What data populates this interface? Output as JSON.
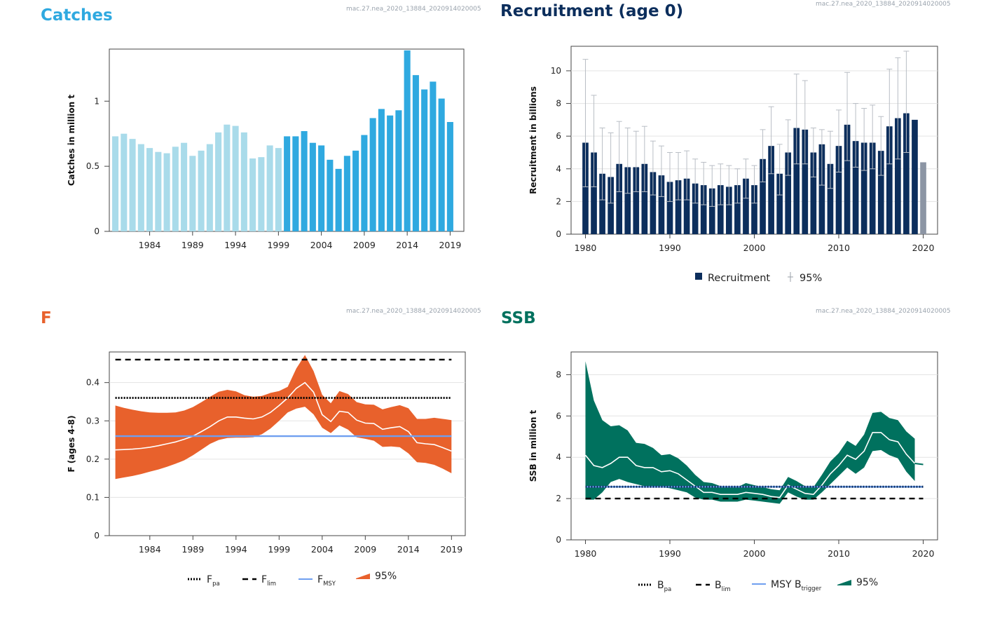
{
  "panels": {
    "catches": {
      "title": "Catches",
      "id": "mac.27.nea_2020_13884_2020914020005",
      "color": "#2fa9e0"
    },
    "recruitment": {
      "title": "Recruitment (age 0)",
      "id": "mac.27.nea_2020_13884_2020914020005",
      "color": "#0c2e5c"
    },
    "f": {
      "title": "F",
      "id": "mac.27.nea_2020_13884_2020914020005",
      "color": "#e8612c"
    },
    "ssb": {
      "title": "SSB",
      "id": "mac.27.nea_2020_13884_2020914020005",
      "color": "#00715e"
    }
  },
  "chart_data": [
    {
      "key": "catches",
      "type": "bar",
      "ylabel": "Catches in million t",
      "ylim": [
        0,
        1.4
      ],
      "yticks": [
        0,
        0.5,
        1
      ],
      "ytick_labels": [
        "0",
        "0.5",
        "1"
      ],
      "xticks": [
        1984,
        1989,
        1994,
        1999,
        2004,
        2009,
        2014,
        2019
      ],
      "xrange": [
        1979.3,
        2020.6
      ],
      "years": [
        1980,
        1981,
        1982,
        1983,
        1984,
        1985,
        1986,
        1987,
        1988,
        1989,
        1990,
        1991,
        1992,
        1993,
        1994,
        1995,
        1996,
        1997,
        1998,
        1999,
        2000,
        2001,
        2002,
        2003,
        2004,
        2005,
        2006,
        2007,
        2008,
        2009,
        2010,
        2011,
        2012,
        2013,
        2014,
        2015,
        2016,
        2017,
        2018,
        2019
      ],
      "values": [
        0.73,
        0.75,
        0.71,
        0.67,
        0.64,
        0.61,
        0.6,
        0.65,
        0.68,
        0.58,
        0.62,
        0.67,
        0.76,
        0.82,
        0.81,
        0.76,
        0.56,
        0.57,
        0.66,
        0.64,
        0.73,
        0.73,
        0.77,
        0.68,
        0.66,
        0.55,
        0.48,
        0.58,
        0.62,
        0.74,
        0.87,
        0.94,
        0.89,
        0.93,
        1.39,
        1.2,
        1.09,
        1.15,
        1.02,
        0.84
      ],
      "series_colors": {
        "historical": "#a9dbea",
        "recent": "#2fa9e0"
      },
      "recent_from": 2000
    },
    {
      "key": "recruitment",
      "type": "bar",
      "ylabel": "Recruitment in billions",
      "ylim": [
        0,
        11.5
      ],
      "yticks": [
        0,
        2,
        4,
        6,
        8,
        10
      ],
      "ytick_labels": [
        "0",
        "2",
        "4",
        "6",
        "8",
        "10"
      ],
      "xticks": [
        1980,
        1990,
        2000,
        2010,
        2020
      ],
      "xrange": [
        1978.3,
        2021.7
      ],
      "years": [
        1980,
        1981,
        1982,
        1983,
        1984,
        1985,
        1986,
        1987,
        1988,
        1989,
        1990,
        1991,
        1992,
        1993,
        1994,
        1995,
        1996,
        1997,
        1998,
        1999,
        2000,
        2001,
        2002,
        2003,
        2004,
        2005,
        2006,
        2007,
        2008,
        2009,
        2010,
        2011,
        2012,
        2013,
        2014,
        2015,
        2016,
        2017,
        2018,
        2019,
        2020
      ],
      "values": [
        5.6,
        5.0,
        3.7,
        3.5,
        4.3,
        4.1,
        4.1,
        4.3,
        3.8,
        3.6,
        3.2,
        3.3,
        3.4,
        3.1,
        3.0,
        2.8,
        3.0,
        2.9,
        3.0,
        3.4,
        3.0,
        4.6,
        5.4,
        3.7,
        5.0,
        6.5,
        6.4,
        5.0,
        5.5,
        4.3,
        5.4,
        6.7,
        5.7,
        5.6,
        5.6,
        5.1,
        6.6,
        7.1,
        7.4,
        7.0,
        4.4
      ],
      "ci_low": [
        2.9,
        2.9,
        2.1,
        1.9,
        2.6,
        2.5,
        2.6,
        2.6,
        2.4,
        2.3,
        2.0,
        2.1,
        2.1,
        1.9,
        1.8,
        1.7,
        1.8,
        1.8,
        1.9,
        2.2,
        1.9,
        3.2,
        3.7,
        2.4,
        3.6,
        4.3,
        4.3,
        3.5,
        3.0,
        2.8,
        3.8,
        4.5,
        4.1,
        3.9,
        4.0,
        3.6,
        4.3,
        4.6,
        5.0,
        null,
        null
      ],
      "ci_high": [
        10.7,
        8.5,
        6.5,
        6.2,
        6.9,
        6.5,
        6.3,
        6.6,
        5.7,
        5.4,
        5.0,
        5.0,
        5.1,
        4.6,
        4.4,
        4.2,
        4.3,
        4.2,
        4.0,
        4.6,
        4.2,
        6.4,
        7.8,
        5.5,
        7.0,
        9.8,
        9.4,
        6.5,
        6.4,
        6.3,
        7.6,
        9.9,
        8.0,
        7.7,
        7.9,
        7.2,
        10.1,
        10.8,
        11.2,
        null,
        null
      ],
      "bar_color": "#0c2e5c",
      "gray_color": "#8c95a4",
      "legend": {
        "bar_label": "Recruitment",
        "ci_label": "95%"
      }
    },
    {
      "key": "f",
      "type": "area",
      "ylabel": "F (ages 4-8)",
      "ylim": [
        0,
        0.48
      ],
      "yticks": [
        0,
        0.1,
        0.2,
        0.3,
        0.4
      ],
      "ytick_labels": [
        "0",
        "0.1",
        "0.2",
        "0.3",
        "0.4"
      ],
      "xticks": [
        1984,
        1989,
        1994,
        1999,
        2004,
        2009,
        2014,
        2019
      ],
      "xrange": [
        1979.3,
        2020.6
      ],
      "x": [
        1980,
        1981,
        1982,
        1983,
        1984,
        1985,
        1986,
        1987,
        1988,
        1989,
        1990,
        1991,
        1992,
        1993,
        1994,
        1995,
        1996,
        1997,
        1998,
        1999,
        2000,
        2001,
        2002,
        2003,
        2004,
        2005,
        2006,
        2007,
        2008,
        2009,
        2010,
        2011,
        2012,
        2013,
        2014,
        2015,
        2016,
        2017,
        2018,
        2019
      ],
      "estimate": [
        0.224,
        0.225,
        0.226,
        0.228,
        0.231,
        0.235,
        0.24,
        0.245,
        0.252,
        0.26,
        0.272,
        0.285,
        0.3,
        0.31,
        0.31,
        0.307,
        0.305,
        0.31,
        0.322,
        0.34,
        0.36,
        0.385,
        0.4,
        0.375,
        0.316,
        0.298,
        0.325,
        0.322,
        0.302,
        0.294,
        0.293,
        0.278,
        0.282,
        0.285,
        0.272,
        0.243,
        0.24,
        0.238,
        0.23,
        0.221
      ],
      "lower": [
        0.148,
        0.152,
        0.156,
        0.161,
        0.167,
        0.173,
        0.18,
        0.188,
        0.197,
        0.21,
        0.225,
        0.24,
        0.25,
        0.255,
        0.256,
        0.256,
        0.257,
        0.265,
        0.28,
        0.3,
        0.322,
        0.332,
        0.337,
        0.317,
        0.282,
        0.268,
        0.288,
        0.277,
        0.257,
        0.253,
        0.248,
        0.232,
        0.233,
        0.231,
        0.215,
        0.192,
        0.19,
        0.185,
        0.175,
        0.163
      ],
      "upper": [
        0.34,
        0.334,
        0.329,
        0.325,
        0.322,
        0.321,
        0.321,
        0.322,
        0.327,
        0.336,
        0.349,
        0.363,
        0.376,
        0.381,
        0.377,
        0.367,
        0.363,
        0.365,
        0.373,
        0.378,
        0.389,
        0.437,
        0.472,
        0.43,
        0.368,
        0.346,
        0.378,
        0.37,
        0.349,
        0.343,
        0.342,
        0.33,
        0.336,
        0.341,
        0.333,
        0.305,
        0.305,
        0.308,
        0.305,
        0.302
      ],
      "references": {
        "Fpa": 0.36,
        "Flim": 0.46,
        "FMSY": 0.26
      },
      "colors": {
        "band": "#e8612c",
        "line": "#ffffff",
        "fmsy": "#6f9ff0",
        "ref": "#000000"
      },
      "legend": [
        {
          "kind": "dotted",
          "label": "F",
          "sub": "pa"
        },
        {
          "kind": "dashed",
          "label": "F",
          "sub": "lim"
        },
        {
          "kind": "line",
          "label": "F",
          "sub": "MSY"
        },
        {
          "kind": "band",
          "label": "95%",
          "sub": ""
        }
      ]
    },
    {
      "key": "ssb",
      "type": "area",
      "ylabel": "SSB in million t",
      "ylim": [
        0,
        9.1
      ],
      "yticks": [
        0,
        2,
        4,
        6,
        8
      ],
      "ytick_labels": [
        "0",
        "2",
        "4",
        "6",
        "8"
      ],
      "xticks": [
        1980,
        1990,
        2000,
        2010,
        2020
      ],
      "xrange": [
        1978.3,
        2021.7
      ],
      "x": [
        1980,
        1981,
        1982,
        1983,
        1984,
        1985,
        1986,
        1987,
        1988,
        1989,
        1990,
        1991,
        1992,
        1993,
        1994,
        1995,
        1996,
        1997,
        1998,
        1999,
        2000,
        2001,
        2002,
        2003,
        2004,
        2005,
        2006,
        2007,
        2008,
        2009,
        2010,
        2011,
        2012,
        2013,
        2014,
        2015,
        2016,
        2017,
        2018,
        2019
      ],
      "estimate": [
        4.1,
        3.6,
        3.5,
        3.7,
        4.0,
        4.0,
        3.6,
        3.5,
        3.5,
        3.3,
        3.35,
        3.2,
        2.9,
        2.6,
        2.3,
        2.3,
        2.2,
        2.2,
        2.2,
        2.3,
        2.25,
        2.2,
        2.1,
        2.05,
        2.65,
        2.45,
        2.25,
        2.2,
        2.65,
        3.2,
        3.6,
        4.1,
        3.9,
        4.3,
        5.2,
        5.2,
        4.85,
        4.75,
        4.15,
        3.7
      ],
      "lower": [
        1.95,
        1.95,
        2.3,
        2.8,
        2.95,
        2.8,
        2.7,
        2.6,
        2.6,
        2.55,
        2.5,
        2.4,
        2.3,
        2.05,
        1.95,
        1.95,
        1.85,
        1.85,
        1.85,
        1.95,
        1.9,
        1.85,
        1.8,
        1.75,
        2.3,
        2.1,
        1.95,
        1.95,
        2.3,
        2.7,
        3.1,
        3.5,
        3.2,
        3.5,
        4.3,
        4.35,
        4.1,
        3.95,
        3.3,
        2.85
      ],
      "upper": [
        8.65,
        6.75,
        5.8,
        5.5,
        5.55,
        5.3,
        4.7,
        4.65,
        4.45,
        4.1,
        4.15,
        3.95,
        3.6,
        3.15,
        2.8,
        2.75,
        2.6,
        2.55,
        2.55,
        2.75,
        2.65,
        2.55,
        2.45,
        2.4,
        3.05,
        2.85,
        2.6,
        2.55,
        3.15,
        3.8,
        4.2,
        4.8,
        4.55,
        5.1,
        6.15,
        6.2,
        5.9,
        5.8,
        5.25,
        4.9
      ],
      "extension_x": [
        2019,
        2020
      ],
      "extension_y": [
        3.7,
        3.65
      ],
      "references": {
        "Bpa": 2.57,
        "Blim": 2.0,
        "MSYBtrigger": 2.57
      },
      "colors": {
        "band": "#00715e",
        "line": "#ffffff",
        "btrigger": "#6f9ff0",
        "ref": "#000000"
      },
      "legend": [
        {
          "kind": "dotted",
          "label": "B",
          "sub": "pa"
        },
        {
          "kind": "dashed",
          "label": "B",
          "sub": "lim"
        },
        {
          "kind": "line",
          "label": "MSY B",
          "sub": "trigger"
        },
        {
          "kind": "band",
          "label": "95%",
          "sub": ""
        }
      ]
    }
  ]
}
